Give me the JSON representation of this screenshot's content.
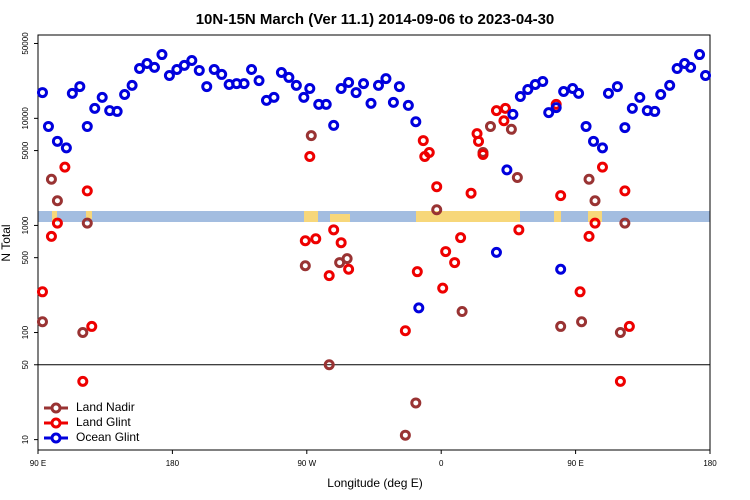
{
  "chart_data": {
    "type": "scatter",
    "title": "10N-15N March (Ver 11.1)   2014-09-06 to 2023-04-30",
    "xlabel": "Longitude (deg E)",
    "ylabel": "N Total",
    "ylog": true,
    "xlim": [
      90,
      540
    ],
    "ylim": [
      8,
      60000
    ],
    "xticks": [
      {
        "value": 90,
        "label": "90 E"
      },
      180,
      {
        "value": 270,
        "label": "90 W"
      },
      {
        "value": 360,
        "label": "0"
      },
      {
        "value": 450,
        "label": "90 E"
      },
      {
        "value": 540,
        "label": "180"
      }
    ],
    "yticks": [
      10,
      50,
      100,
      500,
      1000,
      5000,
      10000,
      50000
    ],
    "hline": 50,
    "legend": "lower left",
    "series": [
      {
        "name": "Land Nadir",
        "color": "#993333",
        "x": [
          93,
          99,
          103,
          123,
          120,
          269,
          273,
          292,
          297,
          285,
          343,
          336,
          357,
          374,
          388,
          393,
          407,
          411,
          440,
          454,
          459,
          463,
          483,
          480
        ],
        "values": [
          126,
          2700,
          1700,
          1050,
          100,
          420,
          6900,
          450,
          490,
          50,
          22,
          11,
          1400,
          157,
          4800,
          8400,
          7900,
          2800,
          114,
          126,
          2700,
          1700,
          1050,
          100
        ]
      },
      {
        "name": "Land Glint",
        "color": "#ee0000",
        "x": [
          93,
          99,
          103,
          108,
          123,
          126,
          120,
          269,
          272,
          276,
          288,
          293,
          298,
          285,
          336,
          344,
          348,
          349,
          352,
          357,
          361,
          363,
          369,
          373,
          380,
          384,
          385,
          388,
          397,
          403,
          402,
          412,
          437,
          440,
          459,
          463,
          468,
          483,
          486,
          480,
          453
        ],
        "values": [
          240,
          790,
          1050,
          3500,
          2100,
          114,
          35,
          720,
          4400,
          750,
          910,
          690,
          390,
          340,
          104,
          370,
          6200,
          4400,
          4800,
          2300,
          260,
          570,
          450,
          770,
          2000,
          7200,
          6100,
          4600,
          11800,
          12400,
          9500,
          910,
          13500,
          1900,
          790,
          1050,
          3500,
          2100,
          114,
          35,
          240
        ]
      },
      {
        "name": "Ocean Glint",
        "color": "#0000dd",
        "x": [
          93,
          97,
          103,
          109,
          113,
          118,
          123,
          128,
          133,
          138,
          143,
          148,
          153,
          158,
          163,
          168,
          173,
          178,
          183,
          188,
          193,
          198,
          203,
          208,
          213,
          218,
          223,
          228,
          233,
          238,
          243,
          248,
          253,
          258,
          263,
          268,
          272,
          278,
          283,
          288,
          293,
          298,
          303,
          308,
          313,
          318,
          323,
          328,
          332,
          338,
          343,
          345,
          397,
          404,
          408,
          413,
          418,
          423,
          428,
          432,
          437,
          440,
          442,
          448,
          452,
          457,
          462,
          468,
          472,
          478,
          483,
          488,
          493,
          498,
          503,
          507,
          513,
          518,
          523,
          527,
          533,
          537
        ],
        "values": [
          17400,
          8400,
          6100,
          5300,
          17100,
          19800,
          8400,
          12400,
          15700,
          11800,
          11600,
          16700,
          20300,
          29200,
          32500,
          29900,
          39400,
          25100,
          28600,
          31200,
          34700,
          28000,
          19800,
          28600,
          25700,
          20700,
          21100,
          21100,
          28600,
          22500,
          14700,
          15700,
          26800,
          24100,
          20300,
          15700,
          19000,
          13500,
          13500,
          8600,
          19000,
          21600,
          17400,
          21100,
          13800,
          20300,
          23500,
          14100,
          19800,
          13200,
          9300,
          170,
          560,
          3300,
          10900,
          16000,
          18600,
          20700,
          22100,
          11300,
          12600,
          390,
          17800,
          19000,
          17100,
          8400,
          6100,
          5300,
          17100,
          19800,
          8200,
          12400,
          15700,
          11800,
          11600,
          16700,
          20300,
          29200,
          32500,
          29900,
          39400,
          25100
        ]
      }
    ]
  }
}
